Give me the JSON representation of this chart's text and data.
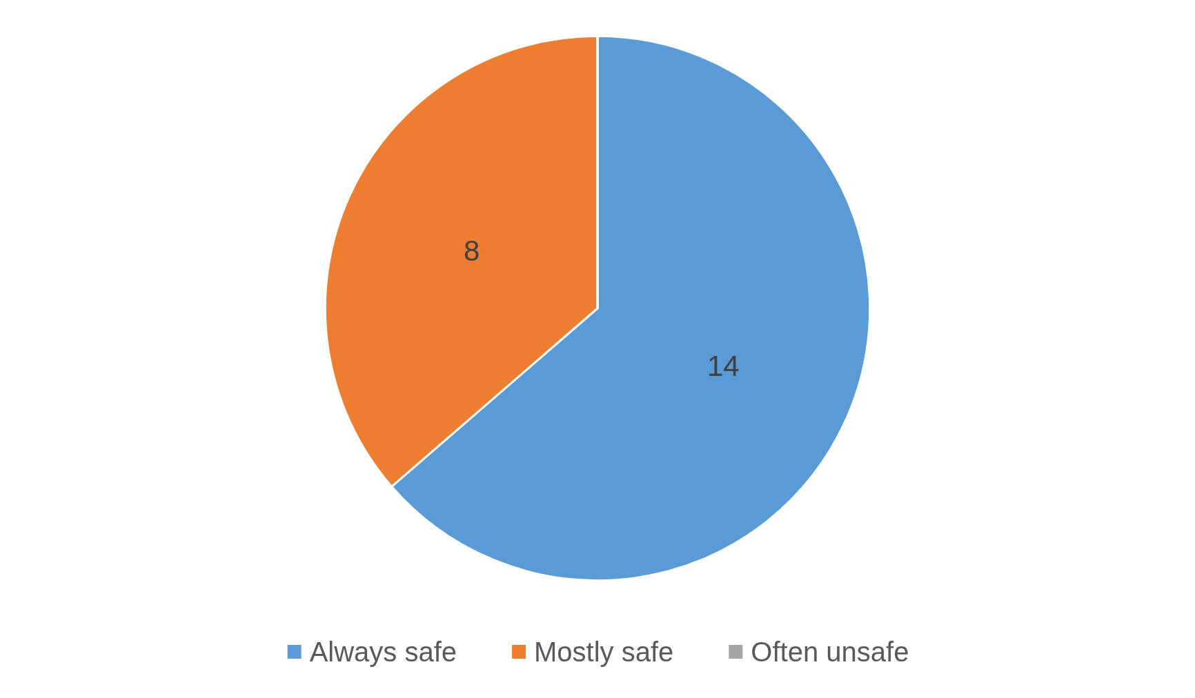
{
  "chart_data": {
    "type": "pie",
    "categories": [
      "Always safe",
      "Mostly safe",
      "Often unsafe"
    ],
    "values": [
      14,
      8,
      0
    ],
    "colors": [
      "#5b9bd5",
      "#ed7d31",
      "#a5a5a5"
    ],
    "value_labels": [
      "14",
      "8",
      null
    ],
    "legend": "bottom"
  }
}
